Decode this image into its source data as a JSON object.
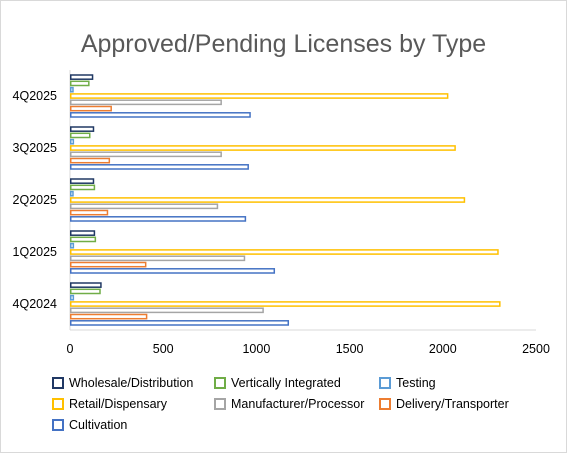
{
  "chart_data": {
    "type": "bar",
    "orientation": "horizontal",
    "title": "Approved/Pending Licenses by Type",
    "categories": [
      "4Q2025",
      "3Q2025",
      "2Q2025",
      "1Q2025",
      "4Q2024"
    ],
    "xlim": [
      0,
      2500
    ],
    "x_ticks": [
      "0",
      "500",
      "1000",
      "1500",
      "2000",
      "2500"
    ],
    "grid": false,
    "legend_position": "bottom",
    "series": [
      {
        "name": "Wholesale/Distribution",
        "color": "#203864",
        "values": [
          125,
          130,
          130,
          135,
          170
        ]
      },
      {
        "name": "Vertically Integrated",
        "color": "#70ad47",
        "values": [
          105,
          110,
          135,
          140,
          165
        ]
      },
      {
        "name": "Testing",
        "color": "#5b9bd5",
        "values": [
          20,
          22,
          20,
          22,
          22
        ]
      },
      {
        "name": "Retail/Dispensary",
        "color": "#ffc000",
        "values": [
          2030,
          2070,
          2120,
          2300,
          2310
        ]
      },
      {
        "name": "Manufacturer/Processor",
        "color": "#a5a5a5",
        "values": [
          815,
          815,
          795,
          940,
          1040
        ]
      },
      {
        "name": "Delivery/Transporter",
        "color": "#ed7d31",
        "values": [
          225,
          215,
          205,
          410,
          415
        ]
      },
      {
        "name": "Cultivation",
        "color": "#4472c4",
        "values": [
          970,
          960,
          945,
          1100,
          1175
        ]
      }
    ]
  }
}
